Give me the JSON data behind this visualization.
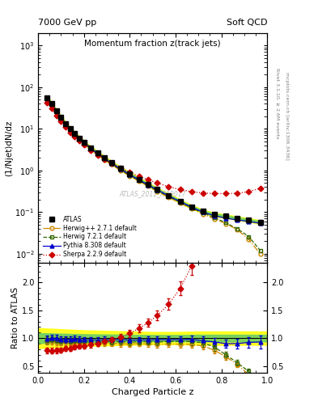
{
  "title": "Momentum fraction z(track jets)",
  "top_left_label": "7000 GeV pp",
  "top_right_label": "Soft QCD",
  "xlabel": "Charged Particle z",
  "ylabel_main": "(1/Njet)dN/dz",
  "ylabel_ratio": "Ratio to ATLAS",
  "right_label1": "Rivet 3.1.10, ≥ 2.6M events",
  "right_label2": "mcplots.cern.ch [arXiv:1306.3436]",
  "watermark": "ATLAS_2011_I919017",
  "atlas_x": [
    0.04,
    0.06,
    0.08,
    0.1,
    0.12,
    0.14,
    0.16,
    0.18,
    0.2,
    0.23,
    0.26,
    0.29,
    0.32,
    0.36,
    0.4,
    0.44,
    0.48,
    0.52,
    0.57,
    0.62,
    0.67,
    0.72,
    0.77,
    0.82,
    0.87,
    0.92,
    0.97
  ],
  "atlas_y": [
    55,
    40,
    27,
    19,
    13.5,
    10.0,
    7.8,
    6.1,
    4.8,
    3.5,
    2.65,
    2.0,
    1.55,
    1.12,
    0.83,
    0.62,
    0.47,
    0.355,
    0.255,
    0.185,
    0.135,
    0.105,
    0.088,
    0.08,
    0.072,
    0.065,
    0.058
  ],
  "atlas_yerr": [
    3.5,
    2.5,
    1.6,
    1.1,
    0.8,
    0.55,
    0.42,
    0.32,
    0.26,
    0.19,
    0.14,
    0.11,
    0.09,
    0.065,
    0.048,
    0.036,
    0.028,
    0.022,
    0.016,
    0.012,
    0.009,
    0.008,
    0.007,
    0.007,
    0.007,
    0.007,
    0.007
  ],
  "atlas_band_inner": 0.05,
  "atlas_band_outer": 0.1,
  "herwigpp_x": [
    0.04,
    0.06,
    0.08,
    0.1,
    0.12,
    0.14,
    0.16,
    0.18,
    0.2,
    0.23,
    0.26,
    0.29,
    0.32,
    0.36,
    0.4,
    0.44,
    0.48,
    0.52,
    0.57,
    0.62,
    0.67,
    0.72,
    0.77,
    0.82,
    0.87,
    0.92,
    0.97
  ],
  "herwigpp_y": [
    52,
    38,
    25,
    17.5,
    12.5,
    9.2,
    7.3,
    5.6,
    4.35,
    3.18,
    2.38,
    1.82,
    1.4,
    1.01,
    0.74,
    0.56,
    0.42,
    0.315,
    0.228,
    0.165,
    0.12,
    0.09,
    0.069,
    0.053,
    0.038,
    0.022,
    0.01
  ],
  "herwig7_x": [
    0.04,
    0.06,
    0.08,
    0.1,
    0.12,
    0.14,
    0.16,
    0.18,
    0.2,
    0.23,
    0.26,
    0.29,
    0.32,
    0.36,
    0.4,
    0.44,
    0.48,
    0.52,
    0.57,
    0.62,
    0.67,
    0.72,
    0.77,
    0.82,
    0.87,
    0.92,
    0.97
  ],
  "herwig7_y": [
    53,
    39,
    26,
    18,
    13,
    9.5,
    7.5,
    5.8,
    4.5,
    3.28,
    2.46,
    1.88,
    1.45,
    1.05,
    0.77,
    0.58,
    0.44,
    0.33,
    0.24,
    0.174,
    0.127,
    0.096,
    0.074,
    0.056,
    0.04,
    0.026,
    0.012
  ],
  "pythia_x": [
    0.04,
    0.06,
    0.08,
    0.1,
    0.12,
    0.14,
    0.16,
    0.18,
    0.2,
    0.23,
    0.26,
    0.29,
    0.32,
    0.36,
    0.4,
    0.44,
    0.48,
    0.52,
    0.57,
    0.62,
    0.67,
    0.72,
    0.77,
    0.82,
    0.87,
    0.92,
    0.97
  ],
  "pythia_y": [
    54,
    40,
    27,
    18.5,
    13.2,
    9.8,
    7.7,
    5.95,
    4.65,
    3.4,
    2.55,
    1.95,
    1.5,
    1.09,
    0.8,
    0.6,
    0.455,
    0.345,
    0.248,
    0.18,
    0.132,
    0.1,
    0.082,
    0.072,
    0.065,
    0.06,
    0.054
  ],
  "sherpa_x": [
    0.04,
    0.06,
    0.08,
    0.1,
    0.12,
    0.14,
    0.16,
    0.18,
    0.2,
    0.23,
    0.26,
    0.29,
    0.32,
    0.36,
    0.4,
    0.44,
    0.48,
    0.52,
    0.57,
    0.62,
    0.67,
    0.72,
    0.77,
    0.82,
    0.87,
    0.92,
    0.97
  ],
  "sherpa_y": [
    43,
    31,
    21,
    15,
    11.0,
    8.2,
    6.6,
    5.2,
    4.1,
    3.08,
    2.38,
    1.88,
    1.5,
    1.14,
    0.9,
    0.73,
    0.6,
    0.5,
    0.41,
    0.35,
    0.31,
    0.29,
    0.28,
    0.28,
    0.285,
    0.31,
    0.38
  ],
  "ylim_main": [
    0.006,
    2000
  ],
  "ylim_ratio": [
    0.38,
    2.35
  ],
  "xlim": [
    0.0,
    1.0
  ],
  "col_atlas": "black",
  "col_hpp": "#cc8800",
  "col_h7": "#336600",
  "col_py": "#0000cc",
  "col_sh": "#cc0000"
}
